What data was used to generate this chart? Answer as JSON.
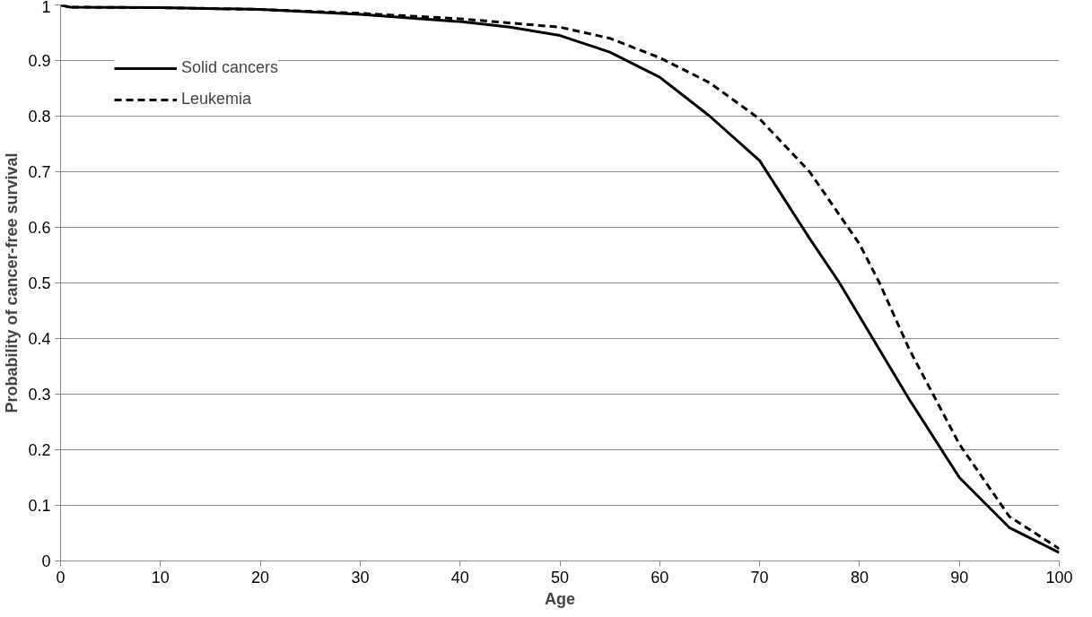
{
  "chart_data": {
    "type": "line",
    "xlabel": "Age",
    "ylabel": "Probability of cancer-free survival",
    "xlim": [
      0,
      100
    ],
    "ylim": [
      0,
      1
    ],
    "xticks": [
      0,
      10,
      20,
      30,
      40,
      50,
      60,
      70,
      80,
      90,
      100
    ],
    "yticks": [
      0,
      0.1,
      0.2,
      0.3,
      0.4,
      0.5,
      0.6,
      0.7,
      0.8,
      0.9,
      1
    ],
    "grid": "y",
    "legend": "top left",
    "series": [
      {
        "name": "Solid cancers",
        "color": "#000000",
        "line_style": "solid",
        "x": [
          0,
          1,
          10,
          20,
          30,
          40,
          45,
          50,
          55,
          60,
          65,
          70,
          75,
          78,
          80,
          85,
          90,
          95,
          100
        ],
        "values": [
          1.0,
          0.996,
          0.995,
          0.992,
          0.983,
          0.97,
          0.96,
          0.945,
          0.915,
          0.87,
          0.8,
          0.72,
          0.58,
          0.5,
          0.44,
          0.29,
          0.15,
          0.06,
          0.015
        ]
      },
      {
        "name": "Leukemia",
        "color": "#000000",
        "line_style": "dashed",
        "x": [
          0,
          1,
          10,
          20,
          30,
          40,
          50,
          55,
          60,
          65,
          70,
          75,
          80,
          82,
          85,
          90,
          95,
          100
        ],
        "values": [
          1.0,
          0.996,
          0.995,
          0.992,
          0.985,
          0.975,
          0.96,
          0.94,
          0.905,
          0.86,
          0.795,
          0.7,
          0.57,
          0.5,
          0.38,
          0.21,
          0.08,
          0.022
        ]
      }
    ]
  }
}
